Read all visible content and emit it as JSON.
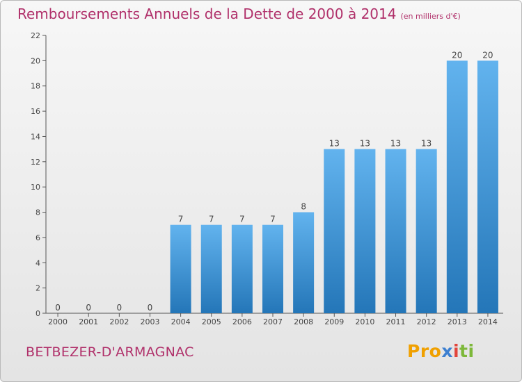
{
  "title": "Remboursements Annuels de la Dette de 2000 à 2014",
  "unit_note": "(en milliers d'€)",
  "commune": "BETBEZER-D'ARMAGNAC",
  "logo": {
    "part1": "Pro",
    "part2": "x",
    "part3": "i",
    "part4": "ti"
  },
  "colors": {
    "title": "#b0306a",
    "bar_light": "#62b3ee",
    "bar_dark": "#2476b8",
    "axis": "#555555"
  },
  "chart_data": {
    "type": "bar",
    "title": "Remboursements Annuels de la Dette de 2000 à 2014",
    "ylabel": "en milliers d'€",
    "xlabel": "",
    "categories": [
      "2000",
      "2001",
      "2002",
      "2003",
      "2004",
      "2005",
      "2006",
      "2007",
      "2008",
      "2009",
      "2010",
      "2011",
      "2012",
      "2013",
      "2014"
    ],
    "values": [
      0,
      0,
      0,
      0,
      7,
      7,
      7,
      7,
      8,
      13,
      13,
      13,
      13,
      20,
      20
    ],
    "ylim": [
      0,
      22
    ],
    "yticks": [
      0,
      2,
      4,
      6,
      8,
      10,
      12,
      14,
      16,
      18,
      20,
      22
    ],
    "grid": false,
    "legend": "none"
  }
}
